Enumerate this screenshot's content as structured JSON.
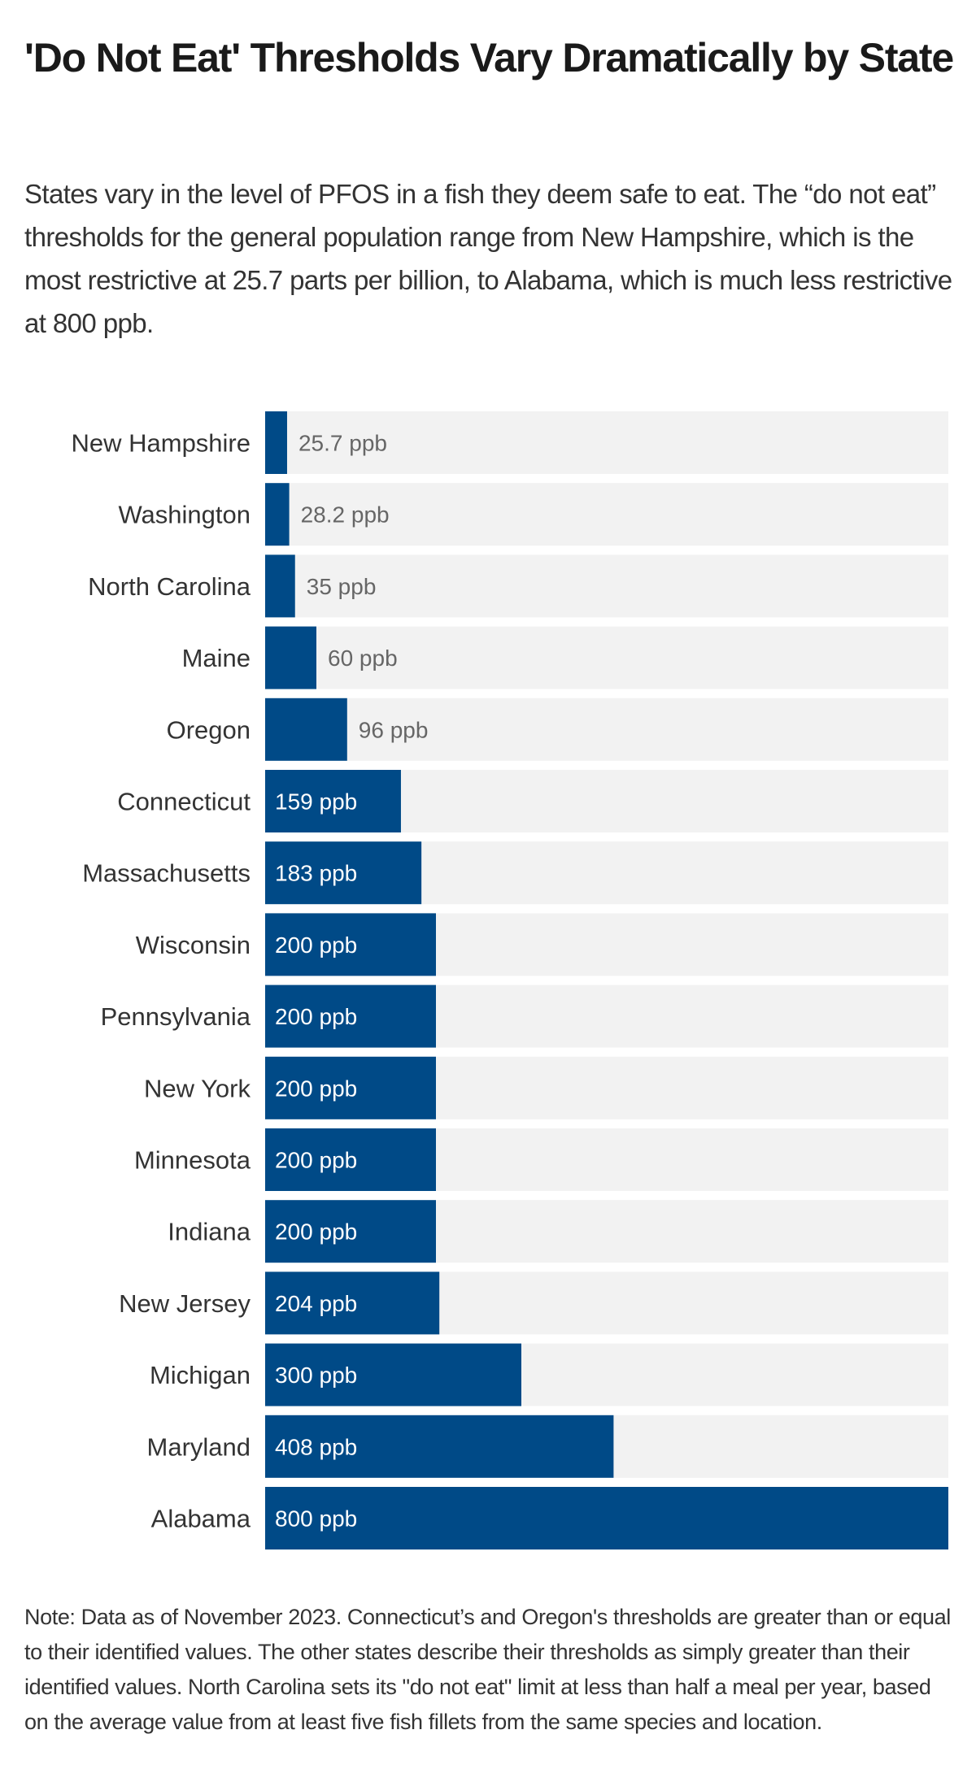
{
  "title": "'Do Not Eat' Thresholds Vary Dramatically by State",
  "subtitle": "States vary in the level of PFOS in a fish they deem safe to eat. The “do not eat” thresholds for the general population range from New Hampshire, which is the most restrictive at 25.7 parts per billion, to Alabama, which is much less restrictive at 800 ppb.",
  "note": "Note: Data as of November 2023. Connecticut’s and Oregon's thresholds are greater than or equal to their identified values. The other states describe their thresholds as simply greater than their identified values. North Carolina sets its \"do not eat\" limit at less than half a meal per year, based on the average value from at least five fish fillets from the same species and location.",
  "colors": {
    "bar": "#004a87",
    "track": "#f2f2f2",
    "label_inside": "#ffffff",
    "label_outside": "#666666"
  },
  "chart_data": {
    "type": "bar",
    "orientation": "horizontal",
    "categories": [
      "New Hampshire",
      "Washington",
      "North Carolina",
      "Maine",
      "Oregon",
      "Connecticut",
      "Massachusetts",
      "Wisconsin",
      "Pennsylvania",
      "New York",
      "Minnesota",
      "Indiana",
      "New Jersey",
      "Michigan",
      "Maryland",
      "Alabama"
    ],
    "values": [
      25.7,
      28.2,
      35,
      60,
      96,
      159,
      183,
      200,
      200,
      200,
      200,
      200,
      204,
      300,
      408,
      800
    ],
    "data_labels": [
      "25.7 ppb",
      "28.2 ppb",
      "35 ppb",
      "60 ppb",
      "96 ppb",
      "159 ppb",
      "183 ppb",
      "200 ppb",
      "200 ppb",
      "200 ppb",
      "200 ppb",
      "200 ppb",
      "204 ppb",
      "300 ppb",
      "408 ppb",
      "800 ppb"
    ],
    "unit": "ppb",
    "xlim": [
      0,
      800
    ],
    "grid": false,
    "legend": "none"
  }
}
